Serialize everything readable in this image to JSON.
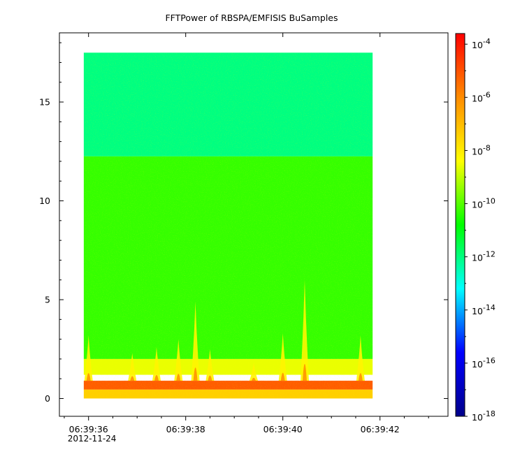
{
  "chart_data": {
    "type": "heatmap",
    "title": "FFTPower of RBSPA/EMFISIS  BuSamples",
    "xlabel": "",
    "ylabel": "",
    "x_axis": {
      "min_seconds": 35.4,
      "max_seconds": 43.4,
      "tick_labels": [
        "06:39:36",
        "06:39:38",
        "06:39:40",
        "06:39:42"
      ],
      "tick_values": [
        36,
        38,
        40,
        42
      ],
      "minor_ticks": [
        35.5,
        36.5,
        37,
        37.5,
        38.5,
        39,
        39.5,
        40.5,
        41,
        41.5,
        42.5,
        43
      ],
      "date_label": "2012-11-24"
    },
    "y_axis": {
      "min": -0.9,
      "max": 18.5,
      "tick_labels": [
        "0",
        "5",
        "10",
        "15"
      ],
      "tick_values": [
        0,
        5,
        10,
        15
      ]
    },
    "colorbar": {
      "scale": "log",
      "min_exp": -18,
      "max_exp": -3.6,
      "tick_exponents": [
        -4,
        -6,
        -8,
        -10,
        -12,
        -14,
        -16,
        -18
      ],
      "tick_base": "10",
      "colormap": [
        "#00008b",
        "#0000ff",
        "#00ffff",
        "#00ff00",
        "#ffff00",
        "#ff8c00",
        "#ff0000"
      ]
    },
    "data_extent": {
      "t_start": 35.9,
      "t_end": 41.85,
      "f_start": 0.0,
      "f_end": 17.5
    },
    "bands": [
      {
        "f_from": 12.25,
        "f_to": 17.5,
        "log_power": -12.0
      },
      {
        "f_from": 2.0,
        "f_to": 12.25,
        "log_power": -10.3
      },
      {
        "f_from": 1.2,
        "f_to": 2.0,
        "log_power": -8.6
      },
      {
        "f_from": 0.45,
        "f_to": 0.9,
        "log_power": -5.2
      },
      {
        "f_from": 0.0,
        "f_to": 0.45,
        "log_power": -7.4
      }
    ],
    "bursts": [
      {
        "t": 36.0,
        "top_f": 3.2
      },
      {
        "t": 36.9,
        "top_f": 2.3
      },
      {
        "t": 37.4,
        "top_f": 2.6
      },
      {
        "t": 37.85,
        "top_f": 3.0
      },
      {
        "t": 38.2,
        "top_f": 4.9
      },
      {
        "t": 38.5,
        "top_f": 2.5
      },
      {
        "t": 39.4,
        "top_f": 1.8
      },
      {
        "t": 40.0,
        "top_f": 3.3
      },
      {
        "t": 40.45,
        "top_f": 6.0
      },
      {
        "t": 41.6,
        "top_f": 3.2
      }
    ]
  }
}
